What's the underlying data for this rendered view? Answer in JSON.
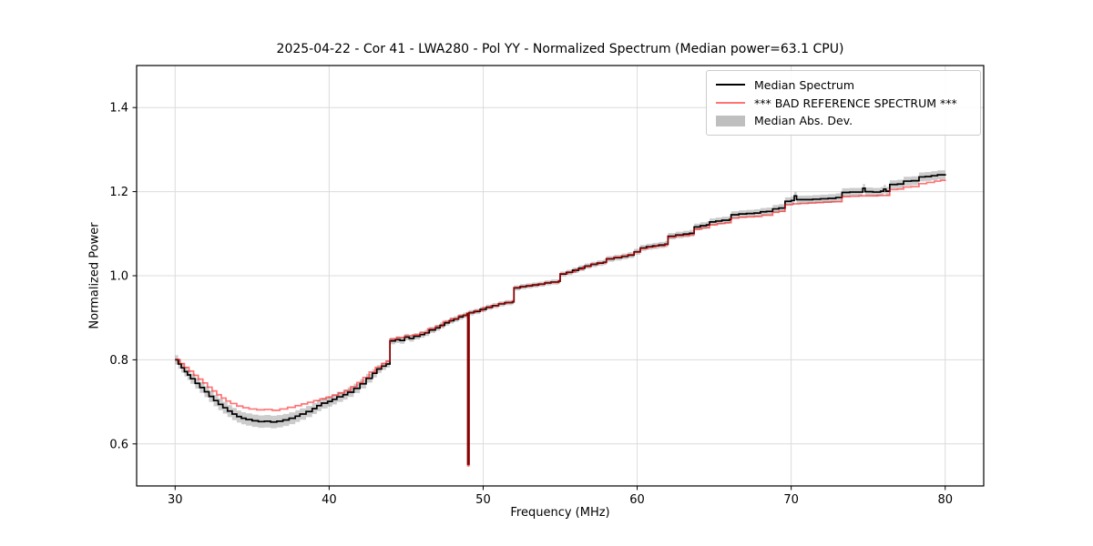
{
  "chart_data": {
    "type": "line",
    "title": "2025-04-22 - Cor 41 - LWA280 - Pol YY - Normalized Spectrum (Median power=63.1 CPU)",
    "xlabel": "Frequency (MHz)",
    "ylabel": "Normalized Power",
    "xlim": [
      27.5,
      82.5
    ],
    "ylim": [
      0.5,
      1.5
    ],
    "xticks": [
      30,
      40,
      50,
      60,
      70,
      80
    ],
    "xtick_labels": [
      "30",
      "40",
      "50",
      "60",
      "70",
      "80"
    ],
    "yticks": [
      0.6,
      0.8,
      1.0,
      1.2,
      1.4
    ],
    "ytick_labels": [
      "0.6",
      "0.8",
      "1.0",
      "1.2",
      "1.4"
    ],
    "grid": true,
    "legend_position": "upper right",
    "line_style": "steps",
    "colors": {
      "grid": "#dcdcdc",
      "axes": "#000000",
      "background": "#ffffff"
    },
    "band": {
      "name": "Median Abs. Dev.",
      "color": "#808080",
      "opacity": 0.4,
      "mad_points": [
        [
          30,
          0.011
        ],
        [
          33,
          0.014
        ],
        [
          36,
          0.015
        ],
        [
          39,
          0.013
        ],
        [
          42,
          0.011
        ],
        [
          44,
          0.008
        ],
        [
          47,
          0.007
        ],
        [
          50,
          0.006
        ],
        [
          55,
          0.006
        ],
        [
          60,
          0.007
        ],
        [
          64,
          0.008
        ],
        [
          68,
          0.009
        ],
        [
          72,
          0.01
        ],
        [
          76,
          0.01
        ],
        [
          80,
          0.011
        ]
      ]
    },
    "series": [
      {
        "name": "Median Spectrum",
        "color": "#000000",
        "opacity": 1.0,
        "width": 1.7,
        "points": [
          [
            30.0,
            0.8
          ],
          [
            30.2,
            0.79
          ],
          [
            30.4,
            0.781
          ],
          [
            30.6,
            0.772
          ],
          [
            30.8,
            0.764
          ],
          [
            31.0,
            0.755
          ],
          [
            31.3,
            0.744
          ],
          [
            31.6,
            0.734
          ],
          [
            31.9,
            0.724
          ],
          [
            32.2,
            0.713
          ],
          [
            32.5,
            0.703
          ],
          [
            32.8,
            0.694
          ],
          [
            33.1,
            0.686
          ],
          [
            33.4,
            0.678
          ],
          [
            33.7,
            0.671
          ],
          [
            34.0,
            0.665
          ],
          [
            34.3,
            0.661
          ],
          [
            34.6,
            0.658
          ],
          [
            35.0,
            0.655
          ],
          [
            35.4,
            0.653
          ],
          [
            35.8,
            0.654
          ],
          [
            36.2,
            0.652
          ],
          [
            36.6,
            0.654
          ],
          [
            37.0,
            0.657
          ],
          [
            37.4,
            0.661
          ],
          [
            37.8,
            0.666
          ],
          [
            38.1,
            0.671
          ],
          [
            38.5,
            0.677
          ],
          [
            38.9,
            0.684
          ],
          [
            39.2,
            0.691
          ],
          [
            39.5,
            0.697
          ],
          [
            39.9,
            0.701
          ],
          [
            40.2,
            0.706
          ],
          [
            40.5,
            0.712
          ],
          [
            40.9,
            0.717
          ],
          [
            41.2,
            0.723
          ],
          [
            41.6,
            0.732
          ],
          [
            42.0,
            0.743
          ],
          [
            42.4,
            0.756
          ],
          [
            42.8,
            0.768
          ],
          [
            43.1,
            0.778
          ],
          [
            43.4,
            0.785
          ],
          [
            43.7,
            0.79
          ],
          [
            43.95,
            0.845
          ],
          [
            44.3,
            0.848
          ],
          [
            44.6,
            0.846
          ],
          [
            44.9,
            0.854
          ],
          [
            45.2,
            0.851
          ],
          [
            45.5,
            0.856
          ],
          [
            45.9,
            0.86
          ],
          [
            46.2,
            0.864
          ],
          [
            46.5,
            0.871
          ],
          [
            46.9,
            0.876
          ],
          [
            47.2,
            0.882
          ],
          [
            47.5,
            0.888
          ],
          [
            47.8,
            0.893
          ],
          [
            48.1,
            0.897
          ],
          [
            48.4,
            0.902
          ],
          [
            48.7,
            0.906
          ],
          [
            48.95,
            0.91
          ],
          [
            49.0,
            0.552
          ],
          [
            49.08,
            0.912
          ],
          [
            49.4,
            0.915
          ],
          [
            49.8,
            0.92
          ],
          [
            50.2,
            0.925
          ],
          [
            50.6,
            0.929
          ],
          [
            51.0,
            0.933
          ],
          [
            51.4,
            0.936
          ],
          [
            51.9,
            0.938
          ],
          [
            52.0,
            0.971
          ],
          [
            52.4,
            0.974
          ],
          [
            52.8,
            0.976
          ],
          [
            53.2,
            0.978
          ],
          [
            53.6,
            0.98
          ],
          [
            54.0,
            0.983
          ],
          [
            54.4,
            0.985
          ],
          [
            54.9,
            0.987
          ],
          [
            55.0,
            1.004
          ],
          [
            55.4,
            1.008
          ],
          [
            55.8,
            1.013
          ],
          [
            56.2,
            1.018
          ],
          [
            56.6,
            1.023
          ],
          [
            57.0,
            1.027
          ],
          [
            57.4,
            1.03
          ],
          [
            57.8,
            1.032
          ],
          [
            58.0,
            1.04
          ],
          [
            58.5,
            1.043
          ],
          [
            59.0,
            1.046
          ],
          [
            59.4,
            1.049
          ],
          [
            59.8,
            1.057
          ],
          [
            60.2,
            1.066
          ],
          [
            60.6,
            1.069
          ],
          [
            61.0,
            1.071
          ],
          [
            61.4,
            1.073
          ],
          [
            61.8,
            1.075
          ],
          [
            62.0,
            1.094
          ],
          [
            62.5,
            1.097
          ],
          [
            63.0,
            1.099
          ],
          [
            63.4,
            1.101
          ],
          [
            63.7,
            1.116
          ],
          [
            64.1,
            1.119
          ],
          [
            64.5,
            1.121
          ],
          [
            64.7,
            1.128
          ],
          [
            65.1,
            1.13
          ],
          [
            65.5,
            1.132
          ],
          [
            66.0,
            1.134
          ],
          [
            66.1,
            1.145
          ],
          [
            66.6,
            1.147
          ],
          [
            67.1,
            1.148
          ],
          [
            67.6,
            1.149
          ],
          [
            68.0,
            1.152
          ],
          [
            68.4,
            1.153
          ],
          [
            68.8,
            1.159
          ],
          [
            69.2,
            1.161
          ],
          [
            69.6,
            1.177
          ],
          [
            70.0,
            1.179
          ],
          [
            70.2,
            1.19
          ],
          [
            70.35,
            1.181
          ],
          [
            70.9,
            1.181
          ],
          [
            71.4,
            1.182
          ],
          [
            71.9,
            1.183
          ],
          [
            72.4,
            1.184
          ],
          [
            72.9,
            1.186
          ],
          [
            73.3,
            1.198
          ],
          [
            73.8,
            1.199
          ],
          [
            74.3,
            1.199
          ],
          [
            74.65,
            1.208
          ],
          [
            74.8,
            1.2
          ],
          [
            75.3,
            1.199
          ],
          [
            75.8,
            1.201
          ],
          [
            76.0,
            1.206
          ],
          [
            76.15,
            1.201
          ],
          [
            76.4,
            1.217
          ],
          [
            76.9,
            1.218
          ],
          [
            77.3,
            1.225
          ],
          [
            77.8,
            1.226
          ],
          [
            78.3,
            1.235
          ],
          [
            78.7,
            1.236
          ],
          [
            79.1,
            1.238
          ],
          [
            79.5,
            1.24
          ],
          [
            80.0,
            1.242
          ]
        ]
      },
      {
        "name": "*** BAD REFERENCE SPECTRUM ***",
        "color": "#ff0000",
        "opacity": 0.55,
        "width": 1.7,
        "points": [
          [
            30.0,
            0.801
          ],
          [
            30.3,
            0.791
          ],
          [
            30.6,
            0.782
          ],
          [
            30.9,
            0.773
          ],
          [
            31.2,
            0.763
          ],
          [
            31.5,
            0.754
          ],
          [
            31.8,
            0.745
          ],
          [
            32.1,
            0.735
          ],
          [
            32.4,
            0.726
          ],
          [
            32.7,
            0.717
          ],
          [
            33.0,
            0.709
          ],
          [
            33.3,
            0.702
          ],
          [
            33.6,
            0.696
          ],
          [
            34.0,
            0.69
          ],
          [
            34.4,
            0.686
          ],
          [
            34.8,
            0.683
          ],
          [
            35.3,
            0.681
          ],
          [
            35.8,
            0.682
          ],
          [
            36.3,
            0.68
          ],
          [
            36.8,
            0.683
          ],
          [
            37.3,
            0.687
          ],
          [
            37.8,
            0.691
          ],
          [
            38.2,
            0.695
          ],
          [
            38.6,
            0.699
          ],
          [
            39.0,
            0.703
          ],
          [
            39.4,
            0.707
          ],
          [
            39.8,
            0.711
          ],
          [
            40.2,
            0.716
          ],
          [
            40.6,
            0.721
          ],
          [
            41.0,
            0.727
          ],
          [
            41.4,
            0.736
          ],
          [
            41.8,
            0.746
          ],
          [
            42.2,
            0.758
          ],
          [
            42.6,
            0.771
          ],
          [
            43.0,
            0.782
          ],
          [
            43.4,
            0.791
          ],
          [
            43.7,
            0.797
          ],
          [
            43.95,
            0.849
          ],
          [
            44.4,
            0.853
          ],
          [
            44.9,
            0.857
          ],
          [
            45.4,
            0.859
          ],
          [
            45.9,
            0.865
          ],
          [
            46.4,
            0.874
          ],
          [
            46.9,
            0.88
          ],
          [
            47.4,
            0.891
          ],
          [
            47.9,
            0.898
          ],
          [
            48.4,
            0.905
          ],
          [
            48.95,
            0.911
          ],
          [
            49.0,
            0.548
          ],
          [
            49.08,
            0.913
          ],
          [
            49.5,
            0.917
          ],
          [
            50.0,
            0.924
          ],
          [
            50.5,
            0.928
          ],
          [
            51.0,
            0.934
          ],
          [
            51.5,
            0.937
          ],
          [
            51.9,
            0.939
          ],
          [
            52.0,
            0.972
          ],
          [
            52.5,
            0.975
          ],
          [
            53.0,
            0.977
          ],
          [
            53.5,
            0.98
          ],
          [
            54.0,
            0.984
          ],
          [
            54.9,
            0.988
          ],
          [
            55.0,
            1.005
          ],
          [
            55.5,
            1.009
          ],
          [
            56.0,
            1.015
          ],
          [
            56.5,
            1.022
          ],
          [
            57.0,
            1.028
          ],
          [
            57.5,
            1.031
          ],
          [
            58.0,
            1.041
          ],
          [
            58.5,
            1.044
          ],
          [
            59.0,
            1.047
          ],
          [
            59.4,
            1.05
          ],
          [
            59.8,
            1.056
          ],
          [
            60.2,
            1.065
          ],
          [
            60.7,
            1.068
          ],
          [
            61.2,
            1.071
          ],
          [
            61.8,
            1.074
          ],
          [
            62.0,
            1.092
          ],
          [
            62.5,
            1.095
          ],
          [
            63.0,
            1.096
          ],
          [
            63.4,
            1.098
          ],
          [
            63.7,
            1.111
          ],
          [
            64.2,
            1.114
          ],
          [
            64.7,
            1.121
          ],
          [
            65.2,
            1.124
          ],
          [
            65.7,
            1.126
          ],
          [
            66.1,
            1.137
          ],
          [
            66.6,
            1.139
          ],
          [
            67.1,
            1.14
          ],
          [
            67.6,
            1.141
          ],
          [
            68.1,
            1.144
          ],
          [
            68.8,
            1.151
          ],
          [
            69.2,
            1.153
          ],
          [
            69.6,
            1.169
          ],
          [
            70.1,
            1.171
          ],
          [
            70.6,
            1.172
          ],
          [
            71.1,
            1.173
          ],
          [
            71.6,
            1.174
          ],
          [
            72.1,
            1.175
          ],
          [
            72.6,
            1.176
          ],
          [
            73.3,
            1.188
          ],
          [
            73.8,
            1.189
          ],
          [
            74.4,
            1.19
          ],
          [
            75.0,
            1.19
          ],
          [
            75.6,
            1.191
          ],
          [
            76.4,
            1.205
          ],
          [
            76.9,
            1.206
          ],
          [
            77.3,
            1.211
          ],
          [
            77.8,
            1.212
          ],
          [
            78.3,
            1.219
          ],
          [
            78.8,
            1.222
          ],
          [
            79.3,
            1.225
          ],
          [
            79.7,
            1.227
          ],
          [
            80.0,
            1.228
          ]
        ]
      }
    ]
  }
}
